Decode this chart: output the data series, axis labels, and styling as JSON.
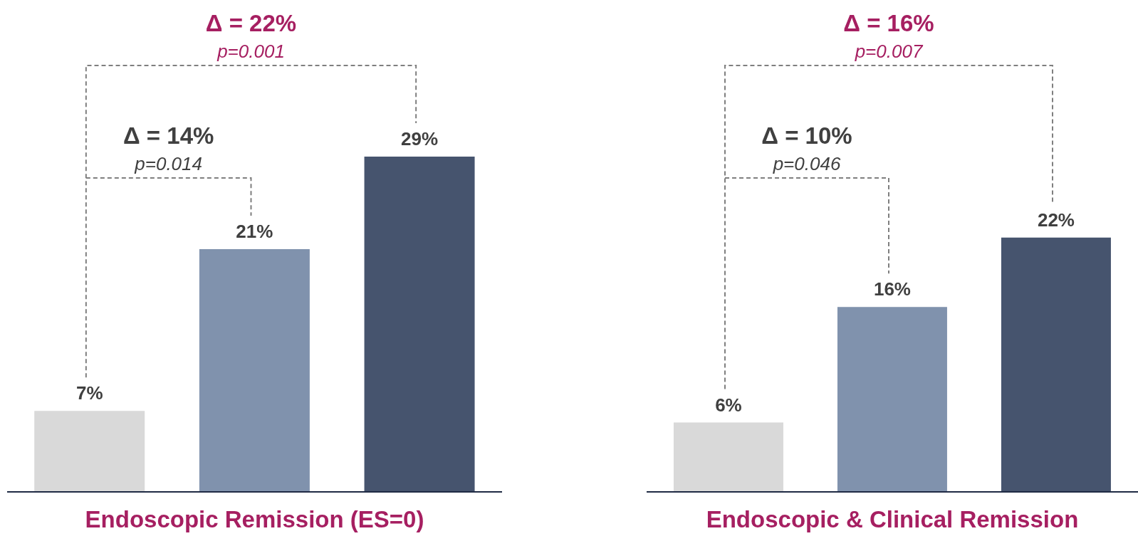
{
  "chart_data": [
    {
      "type": "bar",
      "xlabel": "Endoscopic Remission (ES=0)",
      "categories": [
        null,
        null,
        null
      ],
      "values": [
        7,
        21,
        29
      ],
      "colors": [
        "#d9d9d9",
        "#8092ad",
        "#46546e"
      ],
      "value_labels": [
        "7%",
        "21%",
        "29%"
      ],
      "annotations": [
        "Δ = 22%",
        "p=0.001",
        "Δ = 14%",
        "p=0.014"
      ]
    },
    {
      "type": "bar",
      "xlabel": "Endoscopic & Clinical Remission",
      "categories": [
        null,
        null,
        null
      ],
      "values": [
        6,
        16,
        22
      ],
      "colors": [
        "#d9d9d9",
        "#8092ad",
        "#46546e"
      ],
      "value_labels": [
        "6%",
        "16%",
        "22%"
      ],
      "annotations": [
        "Δ = 16%",
        "p=0.007",
        "Δ = 10%",
        "p=0.046"
      ]
    }
  ]
}
